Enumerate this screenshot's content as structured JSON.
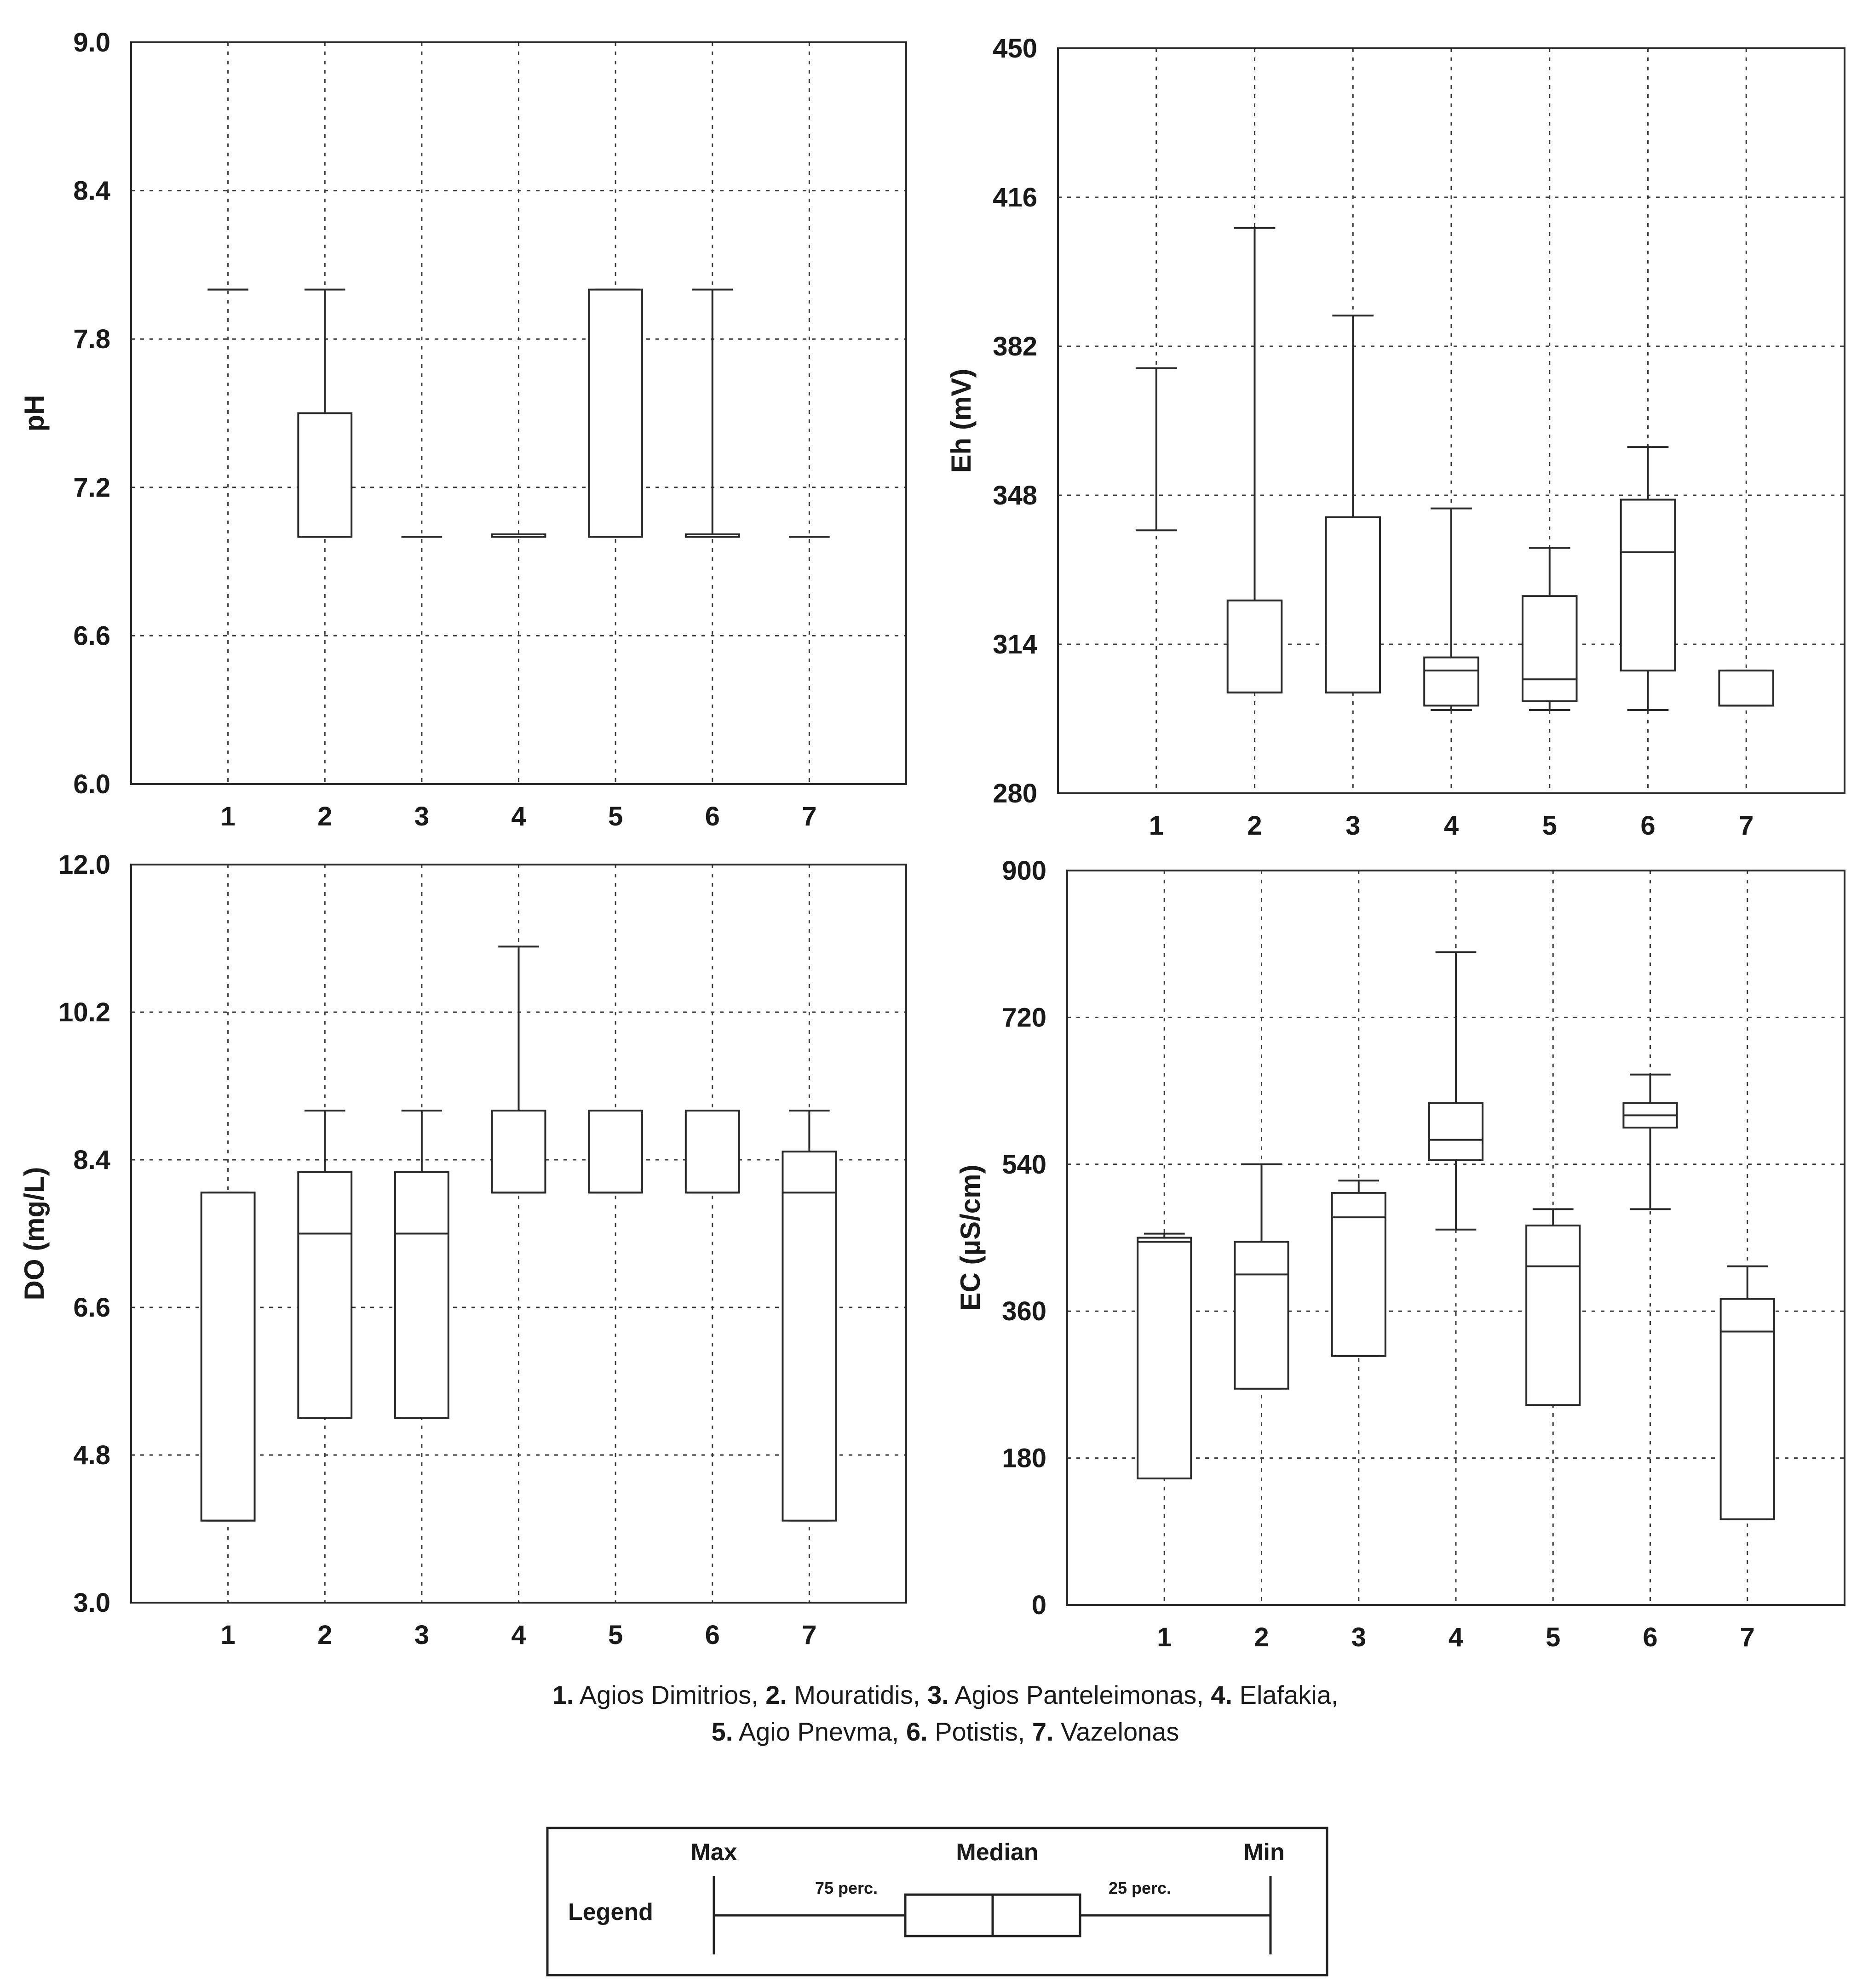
{
  "chart_data": [
    {
      "type": "box",
      "ylabel": "pH",
      "ylim": [
        6.0,
        9.0
      ],
      "yticks": [
        "6.0",
        "6.6",
        "7.2",
        "7.8",
        "8.4",
        "9.0"
      ],
      "categories": [
        "1",
        "2",
        "3",
        "4",
        "5",
        "6",
        "7"
      ],
      "boxes": [
        {
          "min": 8.0,
          "q1": 8.0,
          "median": 8.0,
          "q3": 8.0,
          "max": 8.0
        },
        {
          "min": 7.0,
          "q1": 7.0,
          "median": 7.0,
          "q3": 7.5,
          "max": 8.0
        },
        {
          "min": 7.0,
          "q1": 7.0,
          "median": 7.0,
          "q3": 7.0,
          "max": 7.0
        },
        {
          "min": 7.0,
          "q1": 7.0,
          "median": 7.0,
          "q3": 7.01,
          "max": 7.01
        },
        {
          "min": 7.0,
          "q1": 7.0,
          "median": 7.0,
          "q3": 8.0,
          "max": 8.0
        },
        {
          "min": 7.0,
          "q1": 7.0,
          "median": 7.0,
          "q3": 7.01,
          "max": 8.0
        },
        {
          "min": 7.0,
          "q1": 7.0,
          "median": 7.0,
          "q3": 7.0,
          "max": 7.0
        }
      ]
    },
    {
      "type": "box",
      "ylabel": "Eh (mV)",
      "ylim": [
        280,
        450
      ],
      "yticks": [
        "280",
        "314",
        "348",
        "382",
        "416",
        "450"
      ],
      "categories": [
        "1",
        "2",
        "3",
        "4",
        "5",
        "6",
        "7"
      ],
      "boxes": [
        {
          "min": 340,
          "q1": 340,
          "median": 340,
          "q3": 340,
          "max": 377
        },
        {
          "min": 303,
          "q1": 303,
          "median": 303,
          "q3": 324,
          "max": 409
        },
        {
          "min": 303,
          "q1": 303,
          "median": 303,
          "q3": 343,
          "max": 389
        },
        {
          "min": 299,
          "q1": 300,
          "median": 308,
          "q3": 311,
          "max": 345
        },
        {
          "min": 299,
          "q1": 301,
          "median": 306,
          "q3": 325,
          "max": 336
        },
        {
          "min": 299,
          "q1": 308,
          "median": 335,
          "q3": 347,
          "max": 359
        },
        {
          "min": 300,
          "q1": 300,
          "median": 300,
          "q3": 308,
          "max": 308
        }
      ]
    },
    {
      "type": "box",
      "ylabel": "DO (mg/L)",
      "ylim": [
        3.0,
        12.0
      ],
      "yticks": [
        "3.0",
        "4.8",
        "6.6",
        "8.4",
        "10.2",
        "12.0"
      ],
      "categories": [
        "1",
        "2",
        "3",
        "4",
        "5",
        "6",
        "7"
      ],
      "boxes": [
        {
          "min": 4.0,
          "q1": 4.0,
          "median": 4.0,
          "q3": 8.0,
          "max": 8.0
        },
        {
          "min": 5.25,
          "q1": 5.25,
          "median": 7.5,
          "q3": 8.25,
          "max": 9.0
        },
        {
          "min": 5.25,
          "q1": 5.25,
          "median": 7.5,
          "q3": 8.25,
          "max": 9.0
        },
        {
          "min": 8.0,
          "q1": 8.0,
          "median": 8.0,
          "q3": 9.0,
          "max": 11.0
        },
        {
          "min": 8.0,
          "q1": 8.0,
          "median": 8.0,
          "q3": 9.0,
          "max": 9.0
        },
        {
          "min": 8.0,
          "q1": 8.0,
          "median": 8.0,
          "q3": 9.0,
          "max": 9.0
        },
        {
          "min": 4.0,
          "q1": 4.0,
          "median": 8.0,
          "q3": 8.5,
          "max": 9.0
        }
      ]
    },
    {
      "type": "box",
      "ylabel": "EC (µS/cm)",
      "ylim": [
        0,
        900
      ],
      "yticks": [
        "0",
        "180",
        "360",
        "540",
        "720",
        "900"
      ],
      "categories": [
        "1",
        "2",
        "3",
        "4",
        "5",
        "6",
        "7"
      ],
      "boxes": [
        {
          "min": 155,
          "q1": 155,
          "median": 445,
          "q3": 450,
          "max": 455
        },
        {
          "min": 265,
          "q1": 265,
          "median": 405,
          "q3": 445,
          "max": 540
        },
        {
          "min": 305,
          "q1": 305,
          "median": 475,
          "q3": 505,
          "max": 520
        },
        {
          "min": 460,
          "q1": 545,
          "median": 570,
          "q3": 615,
          "max": 800
        },
        {
          "min": 245,
          "q1": 245,
          "median": 415,
          "q3": 465,
          "max": 485
        },
        {
          "min": 485,
          "q1": 585,
          "median": 600,
          "q3": 615,
          "max": 650
        },
        {
          "min": 105,
          "q1": 105,
          "median": 335,
          "q3": 375,
          "max": 415
        }
      ]
    }
  ],
  "caption": {
    "line1": [
      {
        "num": "1.",
        "name": " Agios Dimitrios, "
      },
      {
        "num": "2.",
        "name": " Mouratidis, "
      },
      {
        "num": "3.",
        "name": " Agios Panteleimonas, "
      },
      {
        "num": "4.",
        "name": " Elafakia,"
      }
    ],
    "line2": [
      {
        "num": "5.",
        "name": " Agio Pnevma,  "
      },
      {
        "num": "6.",
        "name": " Potistis, "
      },
      {
        "num": "7.",
        "name": " Vazelonas"
      }
    ]
  },
  "legend": {
    "title": "Legend",
    "max": "Max",
    "median": "Median",
    "min": "Min",
    "p75": "75 perc.",
    "p25": "25 perc."
  }
}
